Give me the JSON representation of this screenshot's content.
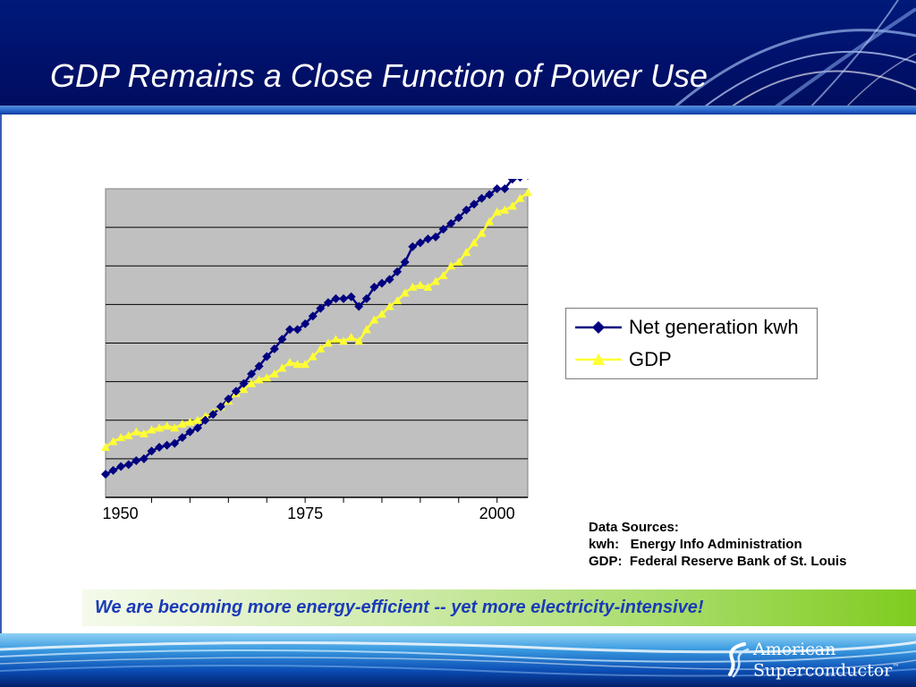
{
  "slide": {
    "title": "GDP Remains a Close Function of Power Use",
    "banner": "We are becoming more energy-efficient -- yet more electricity-intensive!",
    "sources": {
      "heading": "Data Sources:",
      "kwh": "kwh:   Energy Info Administration",
      "gdp": "GDP:  Federal Reserve Bank of St. Louis"
    },
    "logo": {
      "line1": "American",
      "line2": "Superconductor",
      "mark": "™"
    }
  },
  "colors": {
    "header": "#00106a",
    "plot_bg": "#c0c0c0",
    "net_generation": "#000080",
    "gdp": "#ffff33",
    "banner_text": "#1a3ab8"
  },
  "chart_data": {
    "type": "line",
    "x_tick_labels": [
      "1950",
      "1975",
      "2000"
    ],
    "x": [
      1949,
      1950,
      1951,
      1952,
      1953,
      1954,
      1955,
      1956,
      1957,
      1958,
      1959,
      1960,
      1961,
      1962,
      1963,
      1964,
      1965,
      1966,
      1967,
      1968,
      1969,
      1970,
      1971,
      1972,
      1973,
      1974,
      1975,
      1976,
      1977,
      1978,
      1979,
      1980,
      1981,
      1982,
      1983,
      1984,
      1985,
      1986,
      1987,
      1988,
      1989,
      1990,
      1991,
      1992,
      1993,
      1994,
      1995,
      1996,
      1997,
      1998,
      1999,
      2000,
      2001,
      2002,
      2003,
      2004
    ],
    "xlim": [
      1949,
      2004
    ],
    "ylim": [
      0,
      8
    ],
    "grid": true,
    "legend": "right",
    "series": [
      {
        "name": "Net generation kwh",
        "marker": "diamond",
        "values": [
          0.6,
          0.7,
          0.8,
          0.85,
          0.95,
          1.0,
          1.2,
          1.3,
          1.35,
          1.4,
          1.55,
          1.7,
          1.8,
          2.0,
          2.15,
          2.35,
          2.55,
          2.75,
          2.95,
          3.2,
          3.4,
          3.65,
          3.85,
          4.1,
          4.35,
          4.35,
          4.5,
          4.7,
          4.9,
          5.05,
          5.15,
          5.15,
          5.2,
          4.95,
          5.15,
          5.45,
          5.55,
          5.65,
          5.85,
          6.1,
          6.5,
          6.6,
          6.7,
          6.75,
          6.95,
          7.1,
          7.25,
          7.45,
          7.6,
          7.75,
          7.85,
          8.0,
          8.0,
          8.25,
          8.3,
          8.35
        ]
      },
      {
        "name": "GDP",
        "marker": "triangle",
        "values": [
          1.3,
          1.45,
          1.55,
          1.6,
          1.7,
          1.65,
          1.75,
          1.8,
          1.85,
          1.8,
          1.9,
          1.95,
          2.0,
          2.1,
          2.2,
          2.35,
          2.5,
          2.7,
          2.8,
          2.95,
          3.05,
          3.1,
          3.2,
          3.35,
          3.5,
          3.45,
          3.45,
          3.65,
          3.85,
          4.0,
          4.1,
          4.05,
          4.15,
          4.05,
          4.35,
          4.6,
          4.75,
          4.95,
          5.1,
          5.3,
          5.45,
          5.5,
          5.45,
          5.6,
          5.75,
          6.0,
          6.1,
          6.35,
          6.6,
          6.85,
          7.15,
          7.4,
          7.45,
          7.55,
          7.75,
          7.9
        ]
      }
    ]
  }
}
